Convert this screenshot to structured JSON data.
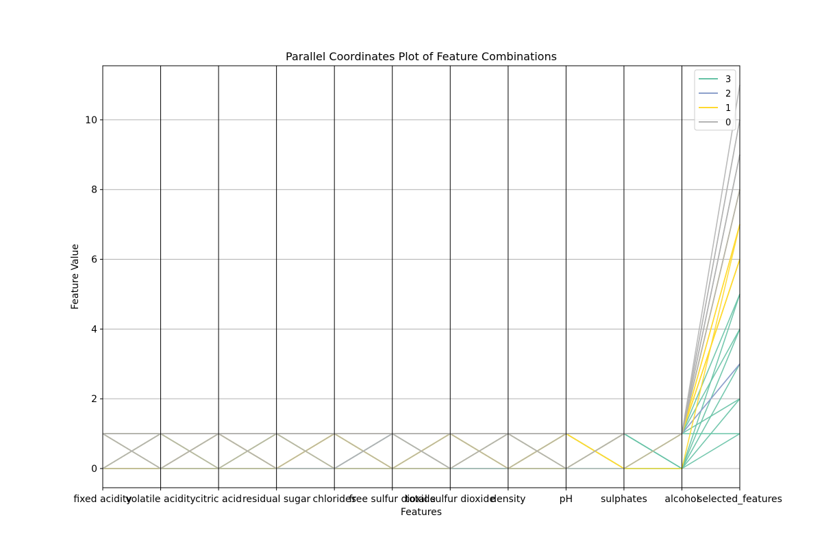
{
  "chart_data": {
    "type": "parallel_coordinates",
    "title": "Parallel Coordinates Plot of Feature Combinations",
    "xlabel": "Features",
    "ylabel": "Feature Value",
    "ylim": [
      -0.55,
      11.55
    ],
    "yticks": [
      0,
      2,
      4,
      6,
      8,
      10
    ],
    "grid": true,
    "legend_position": "top-right",
    "axes": [
      "fixed acidity",
      "volatile acidity",
      "citric acid",
      "residual sugar",
      "chlorides",
      "free sulfur dioxide",
      "total sulfur dioxide",
      "density",
      "pH",
      "sulphates",
      "alcohol",
      "selected_features"
    ],
    "classes": [
      {
        "name": "3",
        "color": "#66c2a5"
      },
      {
        "name": "2",
        "color": "#8da0cb"
      },
      {
        "name": "1",
        "color": "#ffd92f"
      },
      {
        "name": "0",
        "color": "#b3b3b3"
      }
    ],
    "series": [
      {
        "class": "3",
        "values": [
          0,
          1,
          0,
          1,
          0,
          1,
          0,
          1,
          0,
          1,
          0,
          1
        ]
      },
      {
        "class": "3",
        "values": [
          1,
          0,
          1,
          0,
          1,
          0,
          1,
          0,
          1,
          0,
          1,
          1
        ]
      },
      {
        "class": "3",
        "values": [
          0,
          0,
          0,
          0,
          0,
          0,
          0,
          0,
          0,
          0,
          0,
          2
        ]
      },
      {
        "class": "3",
        "values": [
          1,
          1,
          1,
          1,
          1,
          1,
          1,
          1,
          1,
          1,
          1,
          2
        ]
      },
      {
        "class": "3",
        "values": [
          0,
          1,
          1,
          0,
          0,
          1,
          1,
          0,
          0,
          1,
          0,
          3
        ]
      },
      {
        "class": "3",
        "values": [
          1,
          0,
          0,
          1,
          1,
          0,
          0,
          1,
          1,
          0,
          1,
          4
        ]
      },
      {
        "class": "3",
        "values": [
          0,
          1,
          0,
          0,
          1,
          0,
          1,
          1,
          0,
          1,
          0,
          4
        ]
      },
      {
        "class": "3",
        "values": [
          1,
          1,
          0,
          1,
          0,
          0,
          1,
          0,
          1,
          1,
          1,
          5
        ]
      },
      {
        "class": "3",
        "values": [
          0,
          0,
          1,
          1,
          0,
          1,
          0,
          0,
          1,
          0,
          0,
          5
        ]
      },
      {
        "class": "2",
        "values": [
          1,
          0,
          1,
          1,
          0,
          1,
          1,
          0,
          1,
          1,
          1,
          3
        ]
      },
      {
        "class": "2",
        "values": [
          0,
          1,
          1,
          0,
          1,
          1,
          0,
          1,
          0,
          1,
          1,
          3
        ]
      },
      {
        "class": "1",
        "values": [
          0,
          0,
          1,
          0,
          1,
          0,
          1,
          0,
          1,
          0,
          1,
          6
        ]
      },
      {
        "class": "1",
        "values": [
          1,
          0,
          0,
          0,
          1,
          1,
          1,
          0,
          0,
          1,
          1,
          6
        ]
      },
      {
        "class": "1",
        "values": [
          0,
          1,
          1,
          1,
          0,
          0,
          1,
          0,
          1,
          1,
          1,
          6
        ]
      },
      {
        "class": "1",
        "values": [
          1,
          1,
          1,
          0,
          1,
          0,
          0,
          1,
          1,
          0,
          0,
          7
        ]
      },
      {
        "class": "1",
        "values": [
          0,
          0,
          1,
          1,
          1,
          0,
          1,
          1,
          1,
          0,
          1,
          7
        ]
      },
      {
        "class": "1",
        "values": [
          1,
          0,
          1,
          0,
          1,
          1,
          0,
          1,
          0,
          1,
          1,
          7
        ]
      },
      {
        "class": "1",
        "values": [
          0,
          1,
          1,
          0,
          1,
          1,
          1,
          0,
          1,
          1,
          1,
          8
        ]
      },
      {
        "class": "1",
        "values": [
          1,
          1,
          0,
          1,
          1,
          0,
          1,
          1,
          0,
          1,
          1,
          8
        ]
      },
      {
        "class": "0",
        "values": [
          0,
          0,
          1,
          0,
          0,
          1,
          0,
          1,
          0,
          1,
          1,
          8
        ]
      },
      {
        "class": "0",
        "values": [
          1,
          1,
          1,
          1,
          0,
          1,
          1,
          0,
          1,
          1,
          1,
          9
        ]
      },
      {
        "class": "0",
        "values": [
          0,
          1,
          0,
          1,
          1,
          1,
          0,
          1,
          1,
          1,
          1,
          9
        ]
      },
      {
        "class": "0",
        "values": [
          1,
          0,
          1,
          1,
          1,
          0,
          1,
          1,
          1,
          1,
          1,
          9
        ]
      },
      {
        "class": "0",
        "values": [
          0,
          1,
          1,
          1,
          1,
          1,
          1,
          1,
          0,
          1,
          1,
          10
        ]
      },
      {
        "class": "0",
        "values": [
          1,
          1,
          1,
          0,
          1,
          1,
          1,
          1,
          1,
          1,
          1,
          10
        ]
      },
      {
        "class": "0",
        "values": [
          1,
          1,
          1,
          1,
          1,
          1,
          1,
          1,
          1,
          1,
          1,
          11
        ]
      },
      {
        "class": "0",
        "values": [
          1,
          0,
          0,
          0,
          0,
          0,
          0,
          0,
          0,
          0,
          1,
          8
        ]
      }
    ]
  }
}
